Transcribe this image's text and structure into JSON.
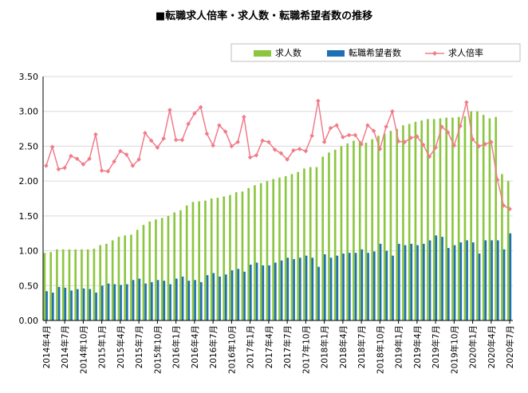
{
  "chart_data": {
    "type": "bar",
    "title": "■転職求人倍率・求人数・転職希望者数の推移",
    "xlabel": "",
    "ylabel": "",
    "ylim": [
      0,
      3.5
    ],
    "yticks": [
      "0.00",
      "0.50",
      "1.00",
      "1.50",
      "2.00",
      "2.50",
      "3.00",
      "3.50"
    ],
    "grid": true,
    "legend_position": "top-right",
    "colors": {
      "jobs": "#8cc63f",
      "seekers": "#1f6fb5",
      "ratio": "#f07c8a"
    },
    "x_tick_labels": [
      "2014年4月",
      "2014年7月",
      "2014年10月",
      "2015年1月",
      "2015年4月",
      "2015年7月",
      "2015年10月",
      "2016年1月",
      "2016年4月",
      "2016年7月",
      "2016年10月",
      "2017年1月",
      "2017年4月",
      "2017年7月",
      "2017年10月",
      "2018年1月",
      "2018年4月",
      "2018年7月",
      "2018年10月",
      "2019年1月",
      "2019年4月",
      "2019年7月",
      "2019年10月",
      "2020年1月",
      "2020年4月",
      "2020年7月"
    ],
    "categories": [
      "2014年4月",
      "2014年5月",
      "2014年6月",
      "2014年7月",
      "2014年8月",
      "2014年9月",
      "2014年10月",
      "2014年11月",
      "2014年12月",
      "2015年1月",
      "2015年2月",
      "2015年3月",
      "2015年4月",
      "2015年5月",
      "2015年6月",
      "2015年7月",
      "2015年8月",
      "2015年9月",
      "2015年10月",
      "2015年11月",
      "2015年12月",
      "2016年1月",
      "2016年2月",
      "2016年3月",
      "2016年4月",
      "2016年5月",
      "2016年6月",
      "2016年7月",
      "2016年8月",
      "2016年9月",
      "2016年10月",
      "2016年11月",
      "2016年12月",
      "2017年1月",
      "2017年2月",
      "2017年3月",
      "2017年4月",
      "2017年5月",
      "2017年6月",
      "2017年7月",
      "2017年8月",
      "2017年9月",
      "2017年10月",
      "2017年11月",
      "2017年12月",
      "2018年1月",
      "2018年2月",
      "2018年3月",
      "2018年4月",
      "2018年5月",
      "2018年6月",
      "2018年7月",
      "2018年8月",
      "2018年9月",
      "2018年10月",
      "2018年11月",
      "2018年12月",
      "2019年1月",
      "2019年2月",
      "2019年3月",
      "2019年4月",
      "2019年5月",
      "2019年6月",
      "2019年7月",
      "2019年8月",
      "2019年9月",
      "2019年10月",
      "2019年11月",
      "2019年12月",
      "2020年1月",
      "2020年2月",
      "2020年3月",
      "2020年4月",
      "2020年5月",
      "2020年6月",
      "2020年7月"
    ],
    "series": [
      {
        "name": "求人数",
        "kind": "bar",
        "values": [
          0.97,
          0.98,
          1.02,
          1.02,
          1.02,
          1.02,
          1.02,
          1.02,
          1.03,
          1.08,
          1.1,
          1.15,
          1.2,
          1.22,
          1.23,
          1.3,
          1.37,
          1.42,
          1.45,
          1.47,
          1.5,
          1.55,
          1.58,
          1.65,
          1.7,
          1.71,
          1.72,
          1.75,
          1.76,
          1.78,
          1.8,
          1.84,
          1.85,
          1.9,
          1.94,
          1.97,
          2.0,
          2.03,
          2.05,
          2.07,
          2.1,
          2.13,
          2.18,
          2.2,
          2.2,
          2.35,
          2.41,
          2.45,
          2.5,
          2.54,
          2.58,
          2.58,
          2.55,
          2.6,
          2.65,
          2.68,
          2.72,
          2.75,
          2.8,
          2.82,
          2.85,
          2.87,
          2.89,
          2.89,
          2.9,
          2.91,
          2.91,
          2.92,
          2.93,
          3.0,
          3.0,
          2.95,
          2.9,
          2.92,
          2.1,
          2.0
        ]
      },
      {
        "name": "転職希望者数",
        "kind": "bar",
        "values": [
          0.42,
          0.4,
          0.48,
          0.47,
          0.43,
          0.45,
          0.46,
          0.45,
          0.4,
          0.5,
          0.53,
          0.52,
          0.51,
          0.52,
          0.58,
          0.6,
          0.53,
          0.55,
          0.58,
          0.57,
          0.52,
          0.6,
          0.63,
          0.57,
          0.58,
          0.55,
          0.65,
          0.68,
          0.63,
          0.66,
          0.72,
          0.74,
          0.7,
          0.8,
          0.83,
          0.79,
          0.79,
          0.83,
          0.86,
          0.9,
          0.88,
          0.9,
          0.93,
          0.9,
          0.77,
          0.95,
          0.9,
          0.93,
          0.96,
          0.97,
          0.97,
          1.02,
          0.97,
          0.99,
          1.1,
          1.0,
          0.93,
          1.1,
          1.08,
          1.1,
          1.08,
          1.1,
          1.15,
          1.22,
          1.2,
          1.04,
          1.08,
          1.12,
          1.15,
          1.12,
          0.96,
          1.15,
          1.15,
          1.15,
          1.02,
          1.25
        ]
      },
      {
        "name": "求人倍率",
        "kind": "line",
        "values": [
          2.22,
          2.49,
          2.17,
          2.19,
          2.36,
          2.32,
          2.24,
          2.32,
          2.67,
          2.15,
          2.14,
          2.28,
          2.43,
          2.38,
          2.22,
          2.31,
          2.69,
          2.58,
          2.48,
          2.61,
          3.02,
          2.59,
          2.59,
          2.82,
          2.97,
          3.06,
          2.68,
          2.51,
          2.8,
          2.71,
          2.5,
          2.56,
          2.92,
          2.34,
          2.37,
          2.58,
          2.56,
          2.45,
          2.4,
          2.31,
          2.44,
          2.46,
          2.43,
          2.65,
          3.15,
          2.56,
          2.76,
          2.8,
          2.63,
          2.66,
          2.66,
          2.53,
          2.8,
          2.72,
          2.46,
          2.78,
          3.0,
          2.57,
          2.56,
          2.62,
          2.64,
          2.52,
          2.35,
          2.48,
          2.78,
          2.7,
          2.51,
          2.79,
          3.13,
          2.6,
          2.5,
          2.53,
          2.56,
          2.02,
          1.65,
          1.6
        ]
      }
    ]
  }
}
